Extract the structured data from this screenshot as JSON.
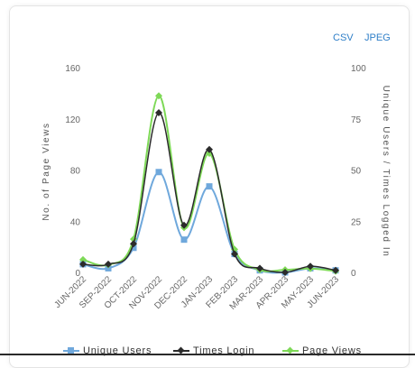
{
  "toolbar": {
    "csv_label": "CSV",
    "jpeg_label": "JPEG"
  },
  "colors": {
    "unique_users": "#6fa8dc",
    "times_login": "#2b2b2b",
    "page_views": "#7ed957",
    "link": "#2f7fc8"
  },
  "chart_data": {
    "type": "line",
    "categories": [
      "JUN-2022",
      "SEP-2022",
      "OCT-2022",
      "NOV-2022",
      "DEC-2022",
      "JAN-2023",
      "FEB-2023",
      "MAR-2023",
      "APR-2023",
      "MAY-2023",
      "JUN-2023"
    ],
    "ylabel": "No. of Page Views",
    "y2label": "Unique Users / Times Logged In",
    "ylim": [
      0,
      160
    ],
    "y2lim": [
      0,
      100
    ],
    "yticks": [
      "0",
      "40",
      "80",
      "120",
      "160"
    ],
    "y2ticks": [
      "0",
      "25",
      "50",
      "75",
      "100"
    ],
    "grid": false,
    "legend_position": "bottom",
    "series": [
      {
        "name": "Unique Users",
        "axis": "right",
        "marker": "square",
        "values": [
          4,
          2,
          12,
          49,
          16,
          42,
          9,
          1,
          0,
          2,
          1
        ]
      },
      {
        "name": "Times Login",
        "axis": "right",
        "marker": "diamond",
        "values": [
          4,
          4,
          14,
          78,
          23,
          60,
          9,
          2,
          0,
          3,
          1
        ]
      },
      {
        "name": "Page Views",
        "axis": "left",
        "marker": "diamond",
        "values": [
          10,
          6,
          26,
          138,
          35,
          93,
          18,
          2,
          2,
          3,
          1
        ]
      }
    ]
  }
}
